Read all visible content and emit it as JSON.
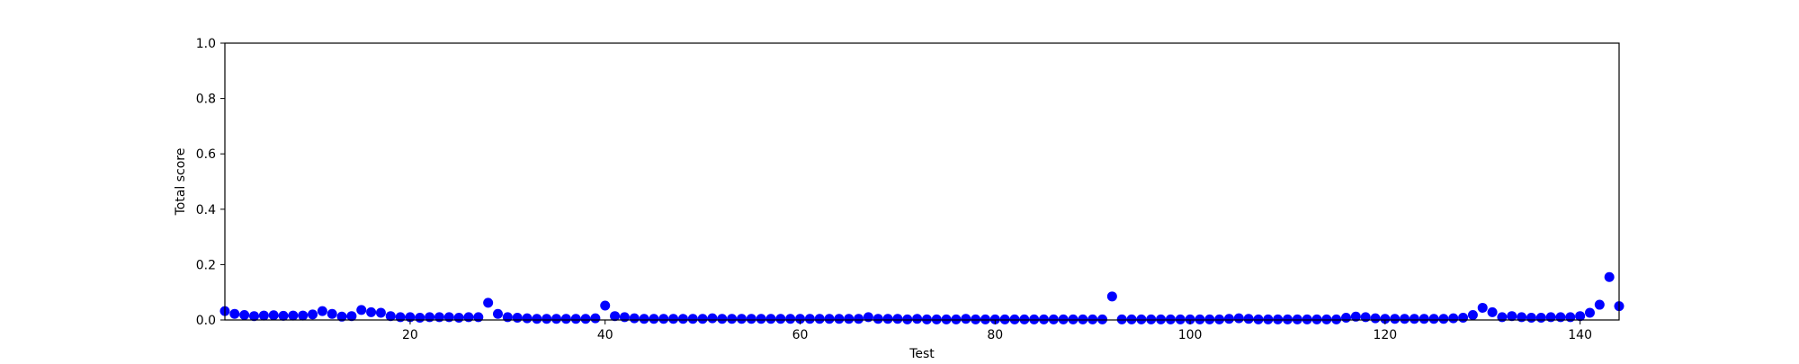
{
  "chart_data": {
    "type": "scatter",
    "title": "",
    "xlabel": "Test",
    "ylabel": "Total score",
    "xlim": [
      1,
      144
    ],
    "ylim": [
      0.0,
      1.0
    ],
    "xticks": [
      "20",
      "40",
      "60",
      "80",
      "100",
      "120",
      "140"
    ],
    "yticks": [
      "0.0",
      "0.2",
      "0.4",
      "0.6",
      "0.8",
      "1.0"
    ],
    "xtick_values": [
      20,
      40,
      60,
      80,
      100,
      120,
      140
    ],
    "ytick_values": [
      0.0,
      0.2,
      0.4,
      0.6,
      0.8,
      1.0
    ],
    "grid": false,
    "marker_color": "#0000ff",
    "x": [
      1,
      2,
      3,
      4,
      5,
      6,
      7,
      8,
      9,
      10,
      11,
      12,
      13,
      14,
      15,
      16,
      17,
      18,
      19,
      20,
      21,
      22,
      23,
      24,
      25,
      26,
      27,
      28,
      29,
      30,
      31,
      32,
      33,
      34,
      35,
      36,
      37,
      38,
      39,
      40,
      41,
      42,
      43,
      44,
      45,
      46,
      47,
      48,
      49,
      50,
      51,
      52,
      53,
      54,
      55,
      56,
      57,
      58,
      59,
      60,
      61,
      62,
      63,
      64,
      65,
      66,
      67,
      68,
      69,
      70,
      71,
      72,
      73,
      74,
      75,
      76,
      77,
      78,
      79,
      80,
      81,
      82,
      83,
      84,
      85,
      86,
      87,
      88,
      89,
      90,
      91,
      92,
      93,
      94,
      95,
      96,
      97,
      98,
      99,
      100,
      101,
      102,
      103,
      104,
      105,
      106,
      107,
      108,
      109,
      110,
      111,
      112,
      113,
      114,
      115,
      116,
      117,
      118,
      119,
      120,
      121,
      122,
      123,
      124,
      125,
      126,
      127,
      128,
      129,
      130,
      131,
      132,
      133,
      134,
      135,
      136,
      137,
      138,
      139,
      140,
      141,
      142,
      143,
      144
    ],
    "y": [
      0.032,
      0.022,
      0.018,
      0.014,
      0.016,
      0.017,
      0.015,
      0.016,
      0.016,
      0.02,
      0.032,
      0.022,
      0.012,
      0.014,
      0.036,
      0.028,
      0.026,
      0.014,
      0.01,
      0.01,
      0.008,
      0.01,
      0.01,
      0.01,
      0.008,
      0.01,
      0.01,
      0.062,
      0.022,
      0.01,
      0.008,
      0.006,
      0.004,
      0.004,
      0.004,
      0.004,
      0.004,
      0.004,
      0.006,
      0.052,
      0.014,
      0.01,
      0.006,
      0.004,
      0.004,
      0.004,
      0.004,
      0.004,
      0.004,
      0.004,
      0.006,
      0.004,
      0.004,
      0.004,
      0.004,
      0.004,
      0.004,
      0.004,
      0.004,
      0.004,
      0.004,
      0.004,
      0.004,
      0.004,
      0.004,
      0.004,
      0.01,
      0.004,
      0.004,
      0.004,
      0.002,
      0.004,
      0.002,
      0.002,
      0.002,
      0.002,
      0.004,
      0.002,
      0.002,
      0.002,
      0.002,
      0.002,
      0.002,
      0.002,
      0.002,
      0.002,
      0.002,
      0.002,
      0.002,
      0.002,
      0.002,
      0.085,
      0.002,
      0.002,
      0.002,
      0.002,
      0.002,
      0.002,
      0.002,
      0.002,
      0.002,
      0.002,
      0.002,
      0.004,
      0.006,
      0.004,
      0.002,
      0.002,
      0.002,
      0.002,
      0.002,
      0.002,
      0.002,
      0.002,
      0.002,
      0.008,
      0.012,
      0.01,
      0.006,
      0.004,
      0.004,
      0.004,
      0.004,
      0.004,
      0.004,
      0.004,
      0.006,
      0.008,
      0.018,
      0.044,
      0.028,
      0.01,
      0.014,
      0.01,
      0.008,
      0.008,
      0.01,
      0.01,
      0.01,
      0.014,
      0.026,
      0.055,
      0.155,
      0.05
    ]
  }
}
